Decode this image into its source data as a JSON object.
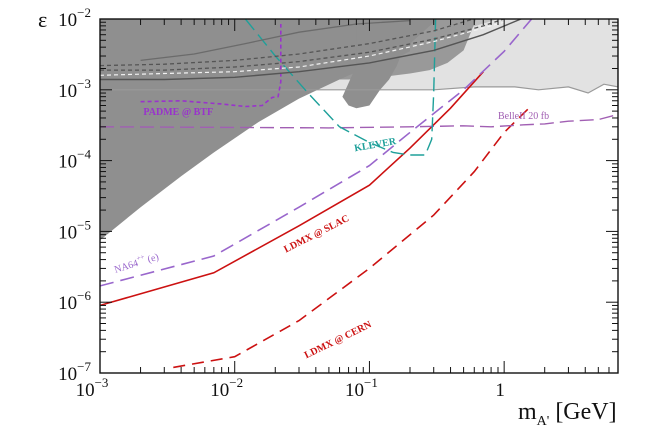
{
  "chart_data": {
    "type": "line",
    "title": "",
    "xlabel": "m_A' [GeV]",
    "ylabel": "ε",
    "xscale": "log",
    "yscale": "log",
    "xlim": [
      0.001,
      7
    ],
    "ylim": [
      1e-07,
      0.01
    ],
    "x_ticks": [
      {
        "value": 0.001,
        "base": "10",
        "exp": "−3"
      },
      {
        "value": 0.01,
        "base": "10",
        "exp": "−2"
      },
      {
        "value": 0.1,
        "base": "10",
        "exp": "−1"
      },
      {
        "value": 1,
        "base": "1",
        "exp": ""
      }
    ],
    "y_ticks": [
      {
        "value": 1e-07,
        "base": "10",
        "exp": "−7"
      },
      {
        "value": 1e-06,
        "base": "10",
        "exp": "−6"
      },
      {
        "value": 1e-05,
        "base": "10",
        "exp": "−5"
      },
      {
        "value": 0.0001,
        "base": "10",
        "exp": "−4"
      },
      {
        "value": 0.001,
        "base": "10",
        "exp": "−3"
      },
      {
        "value": 0.01,
        "base": "10",
        "exp": "−2"
      }
    ],
    "x_axis_title": {
      "main": "m",
      "sub": "A'",
      "unit": " [GeV]"
    },
    "y_axis_title": "ε",
    "regions": [
      {
        "name": "excluded-light",
        "color": "#e2e2e2",
        "points": [
          [
            0.001,
            0.01
          ],
          [
            7,
            0.01
          ],
          [
            7,
            0.0011
          ],
          [
            5.5,
            0.0012
          ],
          [
            4.2,
            0.0009
          ],
          [
            3,
            0.0011
          ],
          [
            1.8,
            0.001
          ],
          [
            1.2,
            0.0011
          ],
          [
            0.6,
            0.0011
          ],
          [
            0.3,
            0.001
          ],
          [
            0.06,
            0.001
          ],
          [
            0.001,
            0.001
          ]
        ]
      },
      {
        "name": "excluded-mid",
        "color": "#bfbfbf",
        "points": [
          [
            0.001,
            0.01
          ],
          [
            0.9,
            0.01
          ],
          [
            0.001,
            0.00018
          ]
        ]
      },
      {
        "name": "excluded-dark",
        "color": "#999999",
        "points": [
          [
            0.001,
            0.01
          ],
          [
            0.62,
            0.01
          ],
          [
            0.5,
            0.0036
          ],
          [
            0.38,
            0.0024
          ],
          [
            0.28,
            0.0019
          ],
          [
            0.2,
            0.0017
          ],
          [
            0.12,
            0.0015
          ],
          [
            0.07,
            0.0014
          ],
          [
            0.03,
            0.0014
          ],
          [
            0.01,
            0.0013
          ],
          [
            0.003,
            0.0012
          ],
          [
            0.001,
            0.0012
          ]
        ]
      },
      {
        "name": "beam-dump",
        "color": "#8f8f8f",
        "points": [
          [
            0.001,
            0.01
          ],
          [
            0.32,
            0.01
          ],
          [
            0.2,
            0.0045
          ],
          [
            0.12,
            0.0025
          ],
          [
            0.06,
            0.0014
          ],
          [
            0.03,
            0.00075
          ],
          [
            0.015,
            0.00035
          ],
          [
            0.007,
            0.00013
          ],
          [
            0.004,
            6e-05
          ],
          [
            0.002,
            2.2e-05
          ],
          [
            0.001,
            7.5e-06
          ]
        ]
      },
      {
        "name": "babar-dip",
        "color": "#8f8f8f",
        "points": [
          [
            0.08,
            0.01
          ],
          [
            0.08,
            0.0022
          ],
          [
            0.063,
            0.0008
          ],
          [
            0.07,
            0.0006
          ],
          [
            0.08,
            0.00055
          ],
          [
            0.1,
            0.0006
          ],
          [
            0.12,
            0.001
          ],
          [
            0.14,
            0.0014
          ],
          [
            0.16,
            0.0022
          ],
          [
            0.17,
            0.003
          ],
          [
            0.2,
            0.0035
          ],
          [
            0.2,
            0.01
          ]
        ]
      }
    ],
    "series": [
      {
        "name": "LDMX @ SLAC",
        "color": "#cc1111",
        "dash": "",
        "width": 1.6,
        "x": [
          0.001,
          0.007,
          0.03,
          0.1,
          0.2,
          0.4,
          0.7
        ],
        "y": [
          9e-07,
          2.6e-06,
          1.2e-05,
          4.5e-05,
          0.00015,
          0.00055,
          0.0018
        ]
      },
      {
        "name": "LDMX @ CERN",
        "color": "#cc1111",
        "dash": "12,7",
        "width": 1.6,
        "x": [
          0.0035,
          0.01,
          0.03,
          0.1,
          0.3,
          0.6,
          1.0,
          1.6
        ],
        "y": [
          1.2e-07,
          1.7e-07,
          5.5e-07,
          3e-06,
          1.7e-05,
          7e-05,
          0.00025,
          0.0006
        ]
      },
      {
        "name": "NA64++ (e)",
        "color": "#9966cc",
        "dash": "14,7",
        "width": 1.6,
        "x": [
          0.001,
          0.007,
          0.03,
          0.1,
          0.2,
          0.5,
          1.0,
          1.6
        ],
        "y": [
          1.7e-06,
          4.5e-06,
          2.2e-05,
          8.5e-05,
          0.00025,
          0.001,
          0.0035,
          0.01
        ]
      },
      {
        "name": "BelleII 20 fb",
        "color": "#a15fb3",
        "dash": "14,6",
        "width": 1.4,
        "x": [
          0.001,
          0.05,
          0.2,
          0.5,
          0.8,
          1.4,
          2.0,
          3.0,
          5.0,
          7.0
        ],
        "y": [
          0.0003,
          0.00029,
          0.0003,
          0.00031,
          0.0003,
          0.00032,
          0.00033,
          0.00036,
          0.00038,
          0.00045
        ]
      },
      {
        "name": "PADME @ BTF",
        "color": "#9933cc",
        "dash": "4,3",
        "width": 1.6,
        "x": [
          0.002,
          0.004,
          0.008,
          0.012,
          0.016,
          0.019,
          0.021,
          0.022,
          0.022
        ],
        "y": [
          0.00068,
          0.0007,
          0.00063,
          0.00058,
          0.0006,
          0.00078,
          0.0008,
          0.0013,
          0.0085
        ]
      },
      {
        "name": "KLEVER",
        "color": "#1ea09a",
        "dash": "14,6",
        "width": 1.4,
        "x": [
          0.012,
          0.02,
          0.035,
          0.06,
          0.1,
          0.15,
          0.2,
          0.26,
          0.29,
          0.3,
          0.31
        ],
        "y": [
          0.01,
          0.003,
          0.0009,
          0.0003,
          0.00018,
          0.00013,
          0.00012,
          0.00012,
          0.0002,
          0.0009,
          0.01
        ]
      },
      {
        "name": "upper-solid",
        "color": "#555555",
        "dash": "",
        "width": 1.4,
        "x": [
          0.001,
          0.003,
          0.01,
          0.03,
          0.1,
          0.3,
          0.7,
          1.5
        ],
        "y": [
          0.0014,
          0.0014,
          0.0015,
          0.0018,
          0.0024,
          0.0036,
          0.006,
          0.011
        ]
      },
      {
        "name": "upper-dashed-a",
        "color": "#555555",
        "dash": "4,3",
        "width": 1.3,
        "x": [
          0.001,
          0.003,
          0.01,
          0.03,
          0.1,
          0.3,
          0.7,
          1.5
        ],
        "y": [
          0.0019,
          0.0019,
          0.0021,
          0.0025,
          0.0034,
          0.0052,
          0.008,
          0.013
        ]
      },
      {
        "name": "upper-dashed-b",
        "color": "#555555",
        "dash": "4,3",
        "width": 1.3,
        "x": [
          0.001,
          0.003,
          0.01,
          0.03,
          0.1,
          0.3,
          0.7,
          1.5
        ],
        "y": [
          0.0022,
          0.0023,
          0.0026,
          0.0032,
          0.0045,
          0.0068,
          0.011,
          0.016
        ]
      },
      {
        "name": "upper-light-dashed",
        "color": "#f2f2f2",
        "dash": "4,3",
        "width": 1.2,
        "x": [
          0.001,
          0.003,
          0.01,
          0.03,
          0.1,
          0.3,
          1.0
        ],
        "y": [
          0.0016,
          0.0017,
          0.0018,
          0.0021,
          0.003,
          0.0048,
          0.009
        ]
      },
      {
        "name": "gray-curve-1",
        "color": "#6b6b6b",
        "dash": "",
        "width": 1.3,
        "x": [
          0.002,
          0.005,
          0.012,
          0.03,
          0.08,
          0.2
        ],
        "y": [
          0.0026,
          0.0032,
          0.0045,
          0.0065,
          0.0085,
          0.0095
        ]
      }
    ],
    "annotations": [
      {
        "key": "padme",
        "text": "PADME @ BTF",
        "x": 0.0021,
        "y": 0.00044,
        "angle": 0,
        "size": 10,
        "color": "#9933cc"
      },
      {
        "key": "belle",
        "text": "BelleII 20 fb",
        "x": 0.9,
        "y": 0.00039,
        "angle": 0,
        "size": 10,
        "color": "#a15fb3",
        "normal": true
      },
      {
        "key": "klever",
        "text": "KLEVER",
        "x": 0.078,
        "y": 0.000135,
        "angle": -10,
        "size": 10,
        "color": "#1ea09a"
      },
      {
        "key": "na64",
        "text": "NA64",
        "sup": "++",
        "rest": " (e)",
        "x": 0.0013,
        "y": 2.6e-06,
        "angle": -17,
        "size": 10,
        "color": "#9966cc",
        "normal": true
      },
      {
        "key": "ldmx_slac",
        "text": "LDMX @ SLAC",
        "x": 0.024,
        "y": 5e-06,
        "angle": -27,
        "size": 10,
        "color": "#cc1111"
      },
      {
        "key": "ldmx_cern",
        "text": "LDMX @ CERN",
        "x": 0.034,
        "y": 1.6e-07,
        "angle": -26,
        "size": 10,
        "color": "#cc1111"
      }
    ]
  }
}
